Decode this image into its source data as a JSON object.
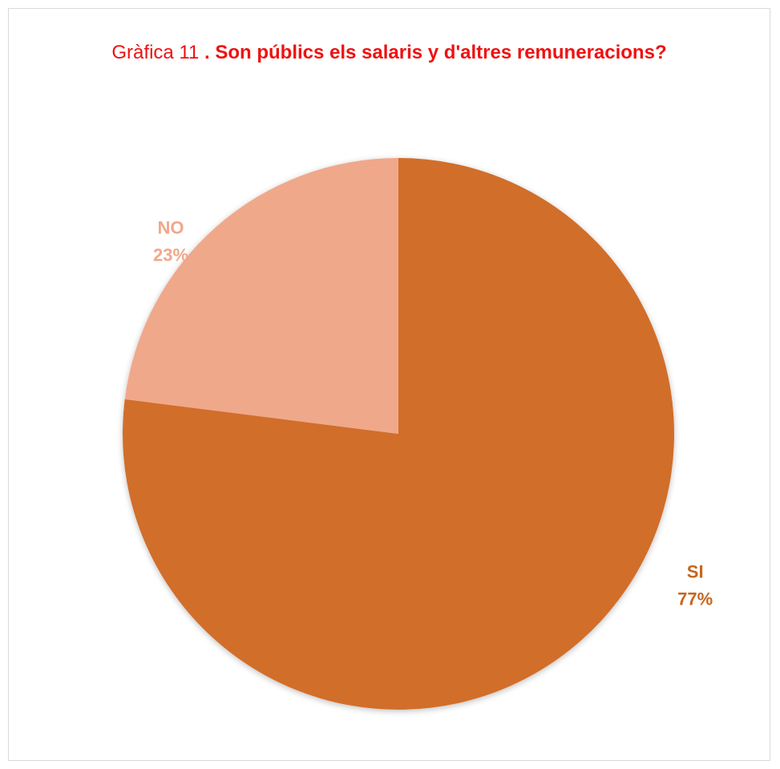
{
  "chart_data": {
    "type": "pie",
    "title_prefix": "Gràfica 11.",
    "title": "Son públics els salaris y d'altres remuneracions?",
    "title_color": "#ee1111",
    "slices": [
      {
        "label": "SI",
        "value": 77,
        "percent_label": "77%",
        "color": "#d16e2b",
        "label_color": "#c7661e"
      },
      {
        "label": "NO",
        "value": 23,
        "percent_label": "23%",
        "color": "#f0a88a",
        "label_color": "#f0a88a"
      }
    ],
    "legend": "none"
  }
}
